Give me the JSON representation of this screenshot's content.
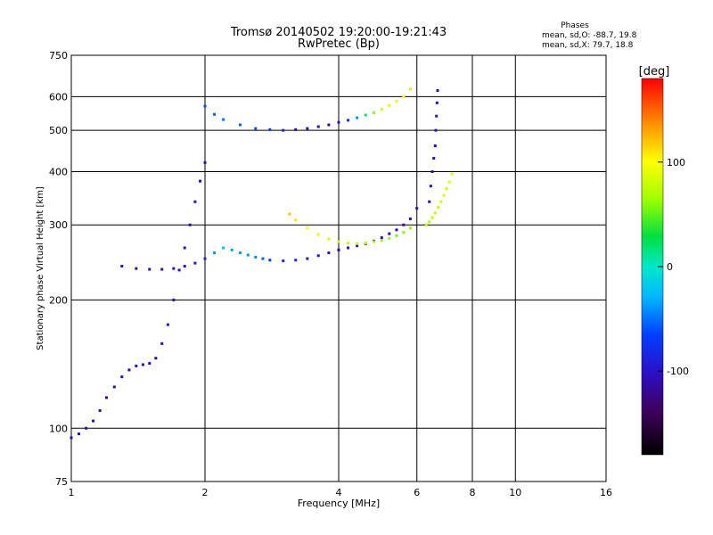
{
  "chart_data": {
    "type": "scatter",
    "title": "Tromsø 20140502 19:20:00-19:21:43",
    "subtitle": "RwPretec (Bp)",
    "xlabel": "Frequency [MHz]",
    "ylabel": "Stationary phase Virtual Height [km]",
    "x_scale": "log2",
    "y_scale": "log",
    "xlim": [
      1,
      16
    ],
    "ylim": [
      75,
      750
    ],
    "x_ticks": [
      1,
      2,
      4,
      6,
      8,
      10,
      16
    ],
    "y_ticks": [
      75,
      100,
      200,
      300,
      400,
      500,
      600,
      750
    ],
    "grid": true,
    "stats": {
      "heading": "Phases",
      "o_mode": "mean, sd,O: -88.7, 19.8",
      "x_mode": "mean, sd,X:  79.7, 18.8"
    },
    "colorbar": {
      "label": "[deg]",
      "range": [
        -180,
        180
      ],
      "ticks": [
        -100,
        0,
        100
      ]
    },
    "series": [
      {
        "x": [
          1.0,
          1.04,
          1.08,
          1.12,
          1.16,
          1.2,
          1.25,
          1.3,
          1.35,
          1.4,
          1.45,
          1.5,
          1.55,
          1.6,
          1.65,
          1.7,
          1.75,
          1.8,
          1.85,
          1.9,
          1.95,
          2.0
        ],
        "y": [
          95,
          97,
          100,
          104,
          110,
          118,
          125,
          132,
          137,
          140,
          141,
          142,
          146,
          158,
          175,
          200,
          235,
          265,
          300,
          340,
          380,
          420
        ],
        "phase": [
          -110,
          -108,
          -112,
          -105,
          -100,
          -115,
          -110,
          -108,
          -112,
          -106,
          -110,
          -104,
          -115,
          -112,
          -108,
          -110,
          -100,
          -105,
          -112,
          -108,
          -110,
          -104
        ]
      },
      {
        "x": [
          1.3,
          1.4,
          1.5,
          1.6,
          1.7,
          1.8,
          1.9,
          2.0,
          2.1,
          2.2,
          2.3,
          2.4,
          2.5,
          2.6,
          2.7,
          2.8,
          3.0,
          3.2,
          3.4,
          3.6,
          3.8,
          4.0
        ],
        "y": [
          240,
          237,
          236,
          236,
          237,
          240,
          244,
          250,
          258,
          265,
          262,
          258,
          255,
          252,
          250,
          248,
          247,
          248,
          250,
          254,
          258,
          262
        ],
        "phase": [
          -110,
          -112,
          -108,
          -110,
          -106,
          -104,
          -95,
          -85,
          -40,
          -30,
          -35,
          -38,
          -40,
          -45,
          -55,
          -70,
          -85,
          -90,
          -92,
          -95,
          -100,
          -105
        ]
      },
      {
        "x": [
          4.0,
          4.2,
          4.4,
          4.6,
          4.8,
          5.0,
          5.2,
          5.4,
          5.6,
          5.8,
          6.0
        ],
        "y": [
          262,
          265,
          268,
          271,
          275,
          280,
          286,
          292,
          300,
          310,
          328
        ],
        "phase": [
          -105,
          -108,
          -110,
          -112,
          -110,
          -108,
          -112,
          -110,
          -106,
          -108,
          -110
        ]
      },
      {
        "x": [
          3.1,
          3.2,
          3.4,
          3.6,
          3.8,
          4.0,
          4.2,
          4.4,
          4.6,
          4.8,
          5.0,
          5.2,
          5.4,
          5.6,
          5.8
        ],
        "y": [
          318,
          308,
          295,
          285,
          278,
          274,
          272,
          271,
          272,
          274,
          276,
          279,
          283,
          288,
          295
        ],
        "phase": [
          120,
          110,
          100,
          90,
          85,
          80,
          78,
          75,
          70,
          68,
          65,
          60,
          55,
          58,
          60
        ]
      },
      {
        "x": [
          6.3,
          6.4,
          6.5,
          6.6,
          6.7,
          6.8,
          6.9,
          7.0,
          7.1,
          7.2
        ],
        "y": [
          300,
          305,
          312,
          320,
          330,
          340,
          352,
          365,
          378,
          395
        ],
        "phase": [
          70,
          72,
          75,
          78,
          80,
          82,
          85,
          88,
          90,
          92
        ]
      },
      {
        "x": [
          6.4,
          6.45,
          6.5,
          6.55,
          6.6,
          6.62,
          6.64,
          6.66,
          6.68
        ],
        "y": [
          340,
          370,
          400,
          430,
          460,
          500,
          540,
          580,
          620
        ],
        "phase": [
          -110,
          -108,
          -106,
          -104,
          -102,
          -100,
          -104,
          -108,
          -110
        ]
      },
      {
        "x": [
          2.0,
          2.1,
          2.2,
          2.4,
          2.6,
          2.8,
          3.0,
          3.2,
          3.4,
          3.6,
          3.8,
          4.0,
          4.2,
          4.4,
          4.6,
          4.8,
          5.0,
          5.2,
          5.4,
          5.6,
          5.8
        ],
        "y": [
          570,
          545,
          530,
          515,
          505,
          502,
          500,
          502,
          505,
          510,
          515,
          522,
          528,
          535,
          543,
          550,
          560,
          572,
          585,
          600,
          625
        ],
        "phase": [
          -60,
          -55,
          -50,
          -55,
          -60,
          -70,
          -90,
          -110,
          -115,
          -112,
          -110,
          -100,
          -80,
          -40,
          20,
          60,
          80,
          90,
          95,
          100,
          110
        ]
      }
    ]
  }
}
